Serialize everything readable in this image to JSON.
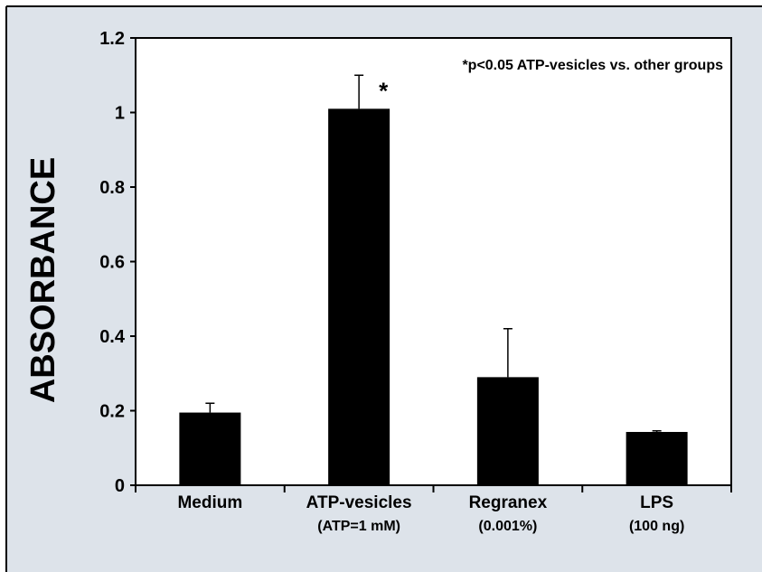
{
  "background_color": "#dde3ea",
  "bar_color": "#000000",
  "chart_data": {
    "type": "bar",
    "title": "",
    "xlabel": "",
    "ylabel": "ABSORBANCE",
    "ylim": [
      0,
      1.2
    ],
    "yticks": [
      "0",
      "0.2",
      "0.4",
      "0.6",
      "0.8",
      "1",
      "1.2"
    ],
    "grid": false,
    "categories": [
      {
        "label": "Medium",
        "sublabel": ""
      },
      {
        "label": "ATP-vesicles",
        "sublabel": "(ATP=1 mM)"
      },
      {
        "label": "Regranex",
        "sublabel": "(0.001%)"
      },
      {
        "label": "LPS",
        "sublabel": "(100 ng)"
      }
    ],
    "values": [
      0.195,
      1.01,
      0.29,
      0.143
    ],
    "errors": [
      0.025,
      0.09,
      0.13,
      0.003
    ],
    "significance": [
      "",
      "*",
      "",
      ""
    ],
    "annotation": "*p<0.05 ATP-vesicles vs. other groups"
  }
}
